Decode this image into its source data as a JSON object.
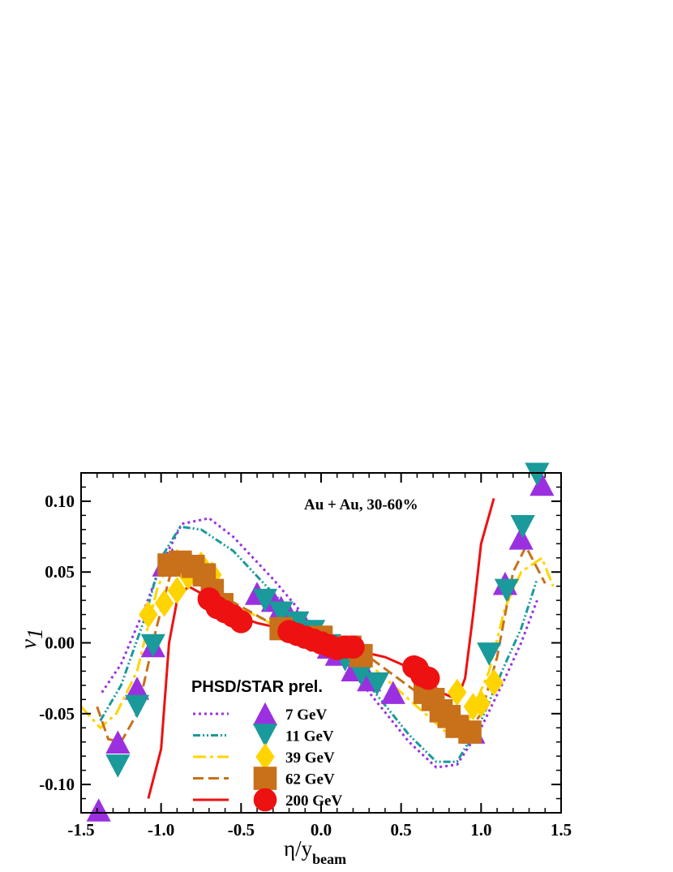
{
  "chart_data": {
    "type": "line",
    "annotation": "Au + Au, 30-60%",
    "legend_title": "PHSD/STAR prel.",
    "xlabel": {
      "main": "η/y",
      "sub": "beam"
    },
    "ylabel": {
      "main": "v",
      "sub": "1"
    },
    "xlim": [
      -1.5,
      1.5
    ],
    "ylim": [
      -0.12,
      0.12
    ],
    "xticks": [
      -1.5,
      -1.0,
      -0.5,
      0.0,
      0.5,
      1.0,
      1.5
    ],
    "xtick_labels": [
      "-1.5",
      "-1.0",
      "-0.5",
      "0.0",
      "0.5",
      "1.0",
      "1.5"
    ],
    "yticks": [
      -0.1,
      -0.05,
      0.0,
      0.05,
      0.1
    ],
    "ytick_labels": [
      "-0.10",
      "-0.05",
      "0.00",
      "0.05",
      "0.10"
    ],
    "grid": false,
    "legend_position": "bottom-left",
    "series": [
      {
        "name": "7 GeV",
        "color": "#9b30e0",
        "dash": "dotted",
        "marker": "triangle-up",
        "line": [
          [
            -1.37,
            -0.035
          ],
          [
            -1.25,
            -0.015
          ],
          [
            -1.1,
            0.025
          ],
          [
            -1.0,
            0.055
          ],
          [
            -0.87,
            0.084
          ],
          [
            -0.7,
            0.088
          ],
          [
            -0.55,
            0.075
          ],
          [
            -0.3,
            0.045
          ],
          [
            0.0,
            0.005
          ],
          [
            0.3,
            -0.035
          ],
          [
            0.55,
            -0.07
          ],
          [
            0.72,
            -0.088
          ],
          [
            0.85,
            -0.086
          ],
          [
            1.0,
            -0.06
          ],
          [
            1.15,
            -0.025
          ],
          [
            1.25,
            0.0
          ],
          [
            1.35,
            0.03
          ]
        ],
        "points": [
          [
            -1.39,
            -0.118
          ],
          [
            -1.27,
            -0.07
          ],
          [
            -1.15,
            -0.032
          ],
          [
            -1.05,
            -0.002
          ],
          [
            -0.98,
            0.055
          ],
          [
            -0.93,
            0.059
          ],
          [
            -0.4,
            0.035
          ],
          [
            -0.3,
            0.03
          ],
          [
            -0.25,
            0.025
          ],
          [
            -0.2,
            0.02
          ],
          [
            -0.15,
            0.016
          ],
          [
            -0.1,
            0.012
          ],
          [
            -0.05,
            0.007
          ],
          [
            0.0,
            0.002
          ],
          [
            0.05,
            -0.003
          ],
          [
            0.1,
            -0.008
          ],
          [
            0.2,
            -0.019
          ],
          [
            0.3,
            -0.026
          ],
          [
            0.45,
            -0.035
          ],
          [
            0.95,
            -0.063
          ],
          [
            1.15,
            0.042
          ],
          [
            1.25,
            0.074
          ],
          [
            1.38,
            0.112
          ]
        ]
      },
      {
        "name": "11 GeV",
        "color": "#1a9a9a",
        "dash": "dash-dot-dot",
        "marker": "triangle-down",
        "line": [
          [
            -1.38,
            -0.055
          ],
          [
            -1.25,
            -0.03
          ],
          [
            -1.1,
            0.018
          ],
          [
            -1.0,
            0.06
          ],
          [
            -0.88,
            0.082
          ],
          [
            -0.75,
            0.08
          ],
          [
            -0.55,
            0.065
          ],
          [
            -0.3,
            0.035
          ],
          [
            0.0,
            0.003
          ],
          [
            0.3,
            -0.03
          ],
          [
            0.55,
            -0.065
          ],
          [
            0.72,
            -0.084
          ],
          [
            0.85,
            -0.084
          ],
          [
            1.0,
            -0.055
          ],
          [
            1.15,
            -0.015
          ],
          [
            1.25,
            0.01
          ],
          [
            1.35,
            0.045
          ]
        ],
        "points": [
          [
            -1.27,
            -0.087
          ],
          [
            -1.15,
            -0.045
          ],
          [
            -1.05,
            -0.002
          ],
          [
            -0.35,
            0.03
          ],
          [
            -0.25,
            0.021
          ],
          [
            -0.15,
            0.014
          ],
          [
            -0.05,
            0.008
          ],
          [
            0.05,
            -0.002
          ],
          [
            0.15,
            -0.012
          ],
          [
            0.25,
            -0.022
          ],
          [
            0.35,
            -0.029
          ],
          [
            0.92,
            -0.065
          ],
          [
            1.05,
            -0.008
          ],
          [
            1.16,
            0.037
          ],
          [
            1.26,
            0.082
          ],
          [
            1.35,
            0.119
          ]
        ]
      },
      {
        "name": "39 GeV",
        "color": "#ffd400",
        "dash": "long-dash-dot",
        "marker": "diamond",
        "line": [
          [
            -1.5,
            -0.045
          ],
          [
            -1.38,
            -0.06
          ],
          [
            -1.28,
            -0.05
          ],
          [
            -1.15,
            -0.02
          ],
          [
            -1.02,
            0.04
          ],
          [
            -0.9,
            0.065
          ],
          [
            -0.75,
            0.055
          ],
          [
            -0.6,
            0.03
          ],
          [
            -0.3,
            0.013
          ],
          [
            0.0,
            0.0
          ],
          [
            0.3,
            -0.015
          ],
          [
            0.6,
            -0.045
          ],
          [
            0.8,
            -0.065
          ],
          [
            0.92,
            -0.055
          ],
          [
            1.05,
            -0.02
          ],
          [
            1.15,
            0.025
          ],
          [
            1.25,
            0.05
          ],
          [
            1.38,
            0.06
          ],
          [
            1.45,
            0.04
          ]
        ],
        "points": [
          [
            -1.08,
            0.02
          ],
          [
            -0.98,
            0.028
          ],
          [
            -0.9,
            0.037
          ],
          [
            -0.83,
            0.047
          ],
          [
            -0.75,
            0.055
          ],
          [
            -0.68,
            0.048
          ],
          [
            0.85,
            -0.035
          ],
          [
            0.95,
            -0.045
          ],
          [
            1.0,
            -0.043
          ],
          [
            1.08,
            -0.028
          ]
        ]
      },
      {
        "name": "62 GeV",
        "color": "#c8701a",
        "dash": "dashed",
        "marker": "square",
        "line": [
          [
            -1.4,
            -0.045
          ],
          [
            -1.33,
            -0.068
          ],
          [
            -1.25,
            -0.07
          ],
          [
            -1.15,
            -0.05
          ],
          [
            -1.03,
            0.01
          ],
          [
            -0.92,
            0.058
          ],
          [
            -0.8,
            0.055
          ],
          [
            -0.65,
            0.035
          ],
          [
            -0.3,
            0.013
          ],
          [
            0.0,
            0.002
          ],
          [
            0.3,
            -0.01
          ],
          [
            0.6,
            -0.035
          ],
          [
            0.8,
            -0.058
          ],
          [
            0.92,
            -0.063
          ],
          [
            1.0,
            -0.05
          ],
          [
            1.1,
            -0.01
          ],
          [
            1.2,
            0.05
          ],
          [
            1.28,
            0.068
          ],
          [
            1.4,
            0.042
          ]
        ],
        "points": [
          [
            -0.95,
            0.055
          ],
          [
            -0.88,
            0.057
          ],
          [
            -0.8,
            0.054
          ],
          [
            -0.73,
            0.048
          ],
          [
            -0.68,
            0.037
          ],
          [
            -0.62,
            0.027
          ],
          [
            -0.25,
            0.01
          ],
          [
            0.0,
            0.004
          ],
          [
            0.18,
            -0.003
          ],
          [
            0.25,
            -0.009
          ],
          [
            0.65,
            -0.035
          ],
          [
            0.7,
            -0.04
          ],
          [
            0.75,
            -0.048
          ],
          [
            0.8,
            -0.052
          ],
          [
            0.85,
            -0.059
          ],
          [
            0.93,
            -0.063
          ]
        ]
      },
      {
        "name": "200 GeV",
        "color": "#ee1111",
        "dash": "solid",
        "marker": "circle",
        "line": [
          [
            -1.08,
            -0.11
          ],
          [
            -1.0,
            -0.075
          ],
          [
            -0.95,
            0.0
          ],
          [
            -0.9,
            0.03
          ],
          [
            -0.83,
            0.04
          ],
          [
            -0.75,
            0.035
          ],
          [
            -0.6,
            0.022
          ],
          [
            -0.4,
            0.014
          ],
          [
            -0.2,
            0.009
          ],
          [
            0.0,
            0.0
          ],
          [
            0.2,
            -0.005
          ],
          [
            0.4,
            -0.01
          ],
          [
            0.6,
            -0.02
          ],
          [
            0.75,
            -0.035
          ],
          [
            0.85,
            -0.04
          ],
          [
            0.9,
            -0.025
          ],
          [
            0.95,
            0.02
          ],
          [
            1.0,
            0.07
          ],
          [
            1.08,
            0.102
          ]
        ],
        "points": [
          [
            -0.7,
            0.031
          ],
          [
            -0.65,
            0.025
          ],
          [
            -0.6,
            0.022
          ],
          [
            -0.55,
            0.019
          ],
          [
            -0.5,
            0.015
          ],
          [
            -0.2,
            0.008
          ],
          [
            -0.15,
            0.006
          ],
          [
            -0.1,
            0.004
          ],
          [
            -0.05,
            0.002
          ],
          [
            0.0,
            0.0
          ],
          [
            0.05,
            -0.002
          ],
          [
            0.1,
            -0.004
          ],
          [
            0.15,
            -0.003
          ],
          [
            0.2,
            -0.003
          ],
          [
            0.58,
            -0.017
          ],
          [
            0.6,
            -0.018
          ],
          [
            0.63,
            -0.023
          ],
          [
            0.67,
            -0.025
          ]
        ]
      }
    ]
  }
}
